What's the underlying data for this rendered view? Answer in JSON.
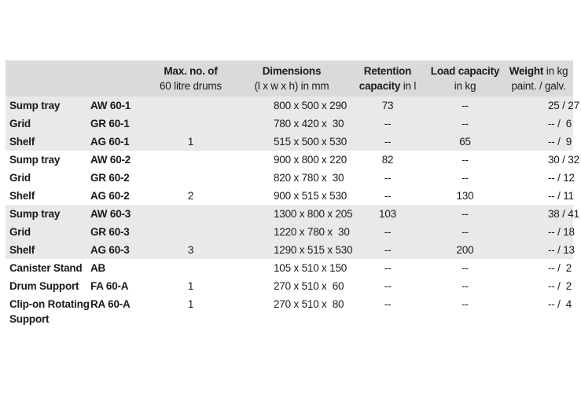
{
  "header": {
    "max_drums_bold": "Max. no. of",
    "max_drums_sub": "60 litre drums",
    "dimensions_bold": "Dimensions",
    "dimensions_sub": "(l x w x h) in mm",
    "retention_bold": "Retention",
    "retention_bold2": "capacity",
    "retention_sub": " in l",
    "load_bold": "Load capacity",
    "load_sub": "in kg",
    "weight_bold": "Weight",
    "weight_sub1": " in kg",
    "weight_sub2": "paint. / galv."
  },
  "rows": [
    {
      "name": "Sump tray",
      "code": "AW 60-1",
      "drums": "",
      "dims": "800 x 500 x 290",
      "retention": "73",
      "load": "--",
      "weight": "25 / 27"
    },
    {
      "name": "Grid",
      "code": "GR 60-1",
      "drums": "",
      "dims": "780 x 420 x  30",
      "retention": "--",
      "load": "--",
      "weight": "-- /  6"
    },
    {
      "name": "Shelf",
      "code": "AG 60-1",
      "drums": "1",
      "dims": "515 x 500 x 530",
      "retention": "--",
      "load": "65",
      "weight": "-- /  9"
    },
    {
      "name": "Sump tray",
      "code": "AW 60-2",
      "drums": "",
      "dims": "900 x 800 x 220",
      "retention": "82",
      "load": "--",
      "weight": "30 / 32"
    },
    {
      "name": "Grid",
      "code": "GR 60-2",
      "drums": "",
      "dims": "820 x 780 x  30",
      "retention": "--",
      "load": "--",
      "weight": "-- / 12"
    },
    {
      "name": "Shelf",
      "code": "AG 60-2",
      "drums": "2",
      "dims": "900 x 515 x 530",
      "retention": "--",
      "load": "130",
      "weight": "-- / 11"
    },
    {
      "name": "Sump tray",
      "code": "AW 60-3",
      "drums": "",
      "dims": "1300 x 800 x 205",
      "retention": "103",
      "load": "--",
      "weight": "38 / 41"
    },
    {
      "name": "Grid",
      "code": "GR 60-3",
      "drums": "",
      "dims": "1220 x 780 x  30",
      "retention": "--",
      "load": "--",
      "weight": "-- / 18"
    },
    {
      "name": "Shelf",
      "code": "AG 60-3",
      "drums": "3",
      "dims": "1290 x 515 x 530",
      "retention": "--",
      "load": "200",
      "weight": "-- / 13"
    },
    {
      "name": "Canister Stand",
      "code": "AB",
      "drums": "",
      "dims": "105 x 510 x 150",
      "retention": "--",
      "load": "--",
      "weight": "-- /  2"
    },
    {
      "name": "Drum Support",
      "code": "FA 60-A",
      "drums": "1",
      "dims": "270 x 510 x  60",
      "retention": "--",
      "load": "--",
      "weight": "-- /  2"
    },
    {
      "name": "Clip-on Rotating\nSupport",
      "code": "RA 60-A",
      "drums": "1",
      "dims": "270 x 510 x  80",
      "retention": "--",
      "load": "--",
      "weight": "-- /  4"
    }
  ]
}
